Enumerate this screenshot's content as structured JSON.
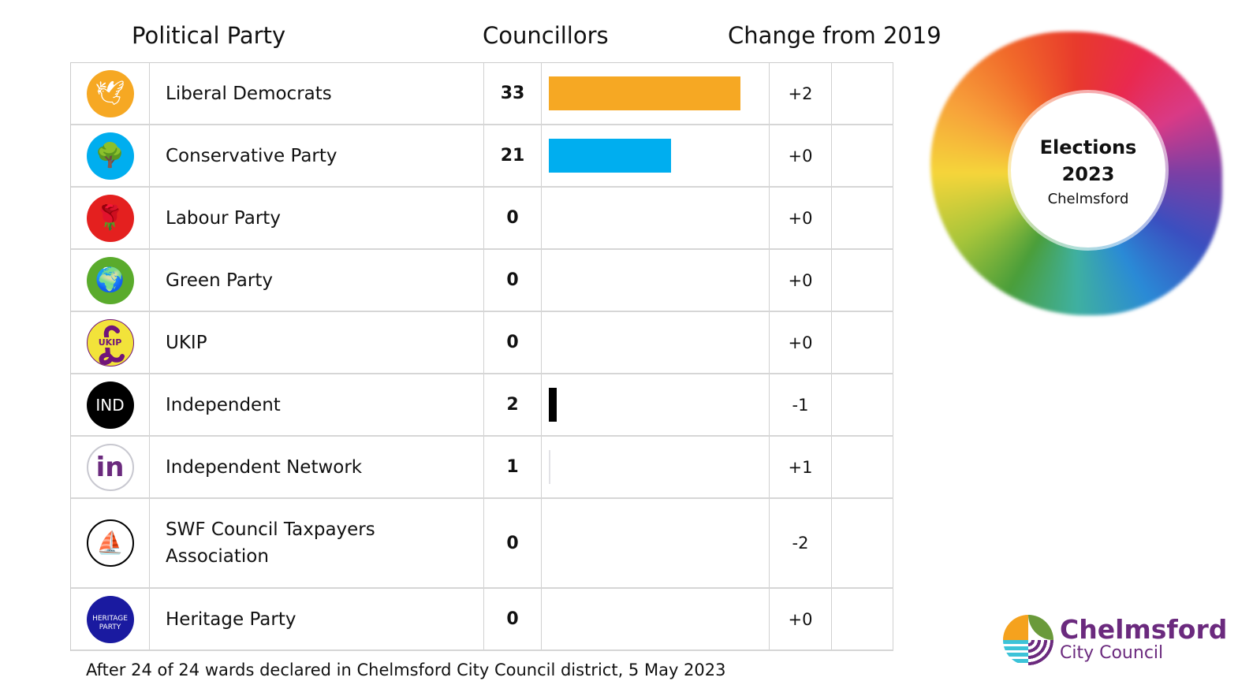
{
  "headers": {
    "party": "Political Party",
    "councillors": "Councillors",
    "change": "Change from 2019"
  },
  "chart_data": {
    "type": "table",
    "columns": [
      "Political Party",
      "Councillors",
      "Change from 2019"
    ],
    "rows": [
      {
        "party": "Liberal Democrats",
        "logo": "bird-of-liberty-icon",
        "logo_color": "#F6A823",
        "councillors": 33,
        "change": "+2",
        "bar_color": "#F6A823"
      },
      {
        "party": "Conservative Party",
        "logo": "tree-icon",
        "logo_color": "#00AEEF",
        "councillors": 21,
        "change": "+0",
        "bar_color": "#00AEEF"
      },
      {
        "party": "Labour Party",
        "logo": "rose-icon",
        "logo_color": "#E4201F",
        "councillors": 0,
        "change": "+0",
        "bar_color": "#E4201F"
      },
      {
        "party": "Green Party",
        "logo": "globe-icon",
        "logo_color": "#5AAB2C",
        "councillors": 0,
        "change": "+0",
        "bar_color": "#5AAB2C"
      },
      {
        "party": "UKIP",
        "logo": "pound-sign-icon",
        "logo_color": "#F2E33A",
        "logo_text": "UKIP",
        "councillors": 0,
        "change": "+0",
        "bar_color": "#70147A"
      },
      {
        "party": "Independent",
        "logo": "ind-icon",
        "logo_color": "#000000",
        "logo_text": "IND",
        "councillors": 2,
        "change": "-1",
        "bar_color": "#000000"
      },
      {
        "party": "Independent Network",
        "logo": "in-icon",
        "logo_color": "#FFFFFF",
        "councillors": 1,
        "change": "+1",
        "bar_color": "#E2E2E6"
      },
      {
        "party": "SWF Council Taxpayers Association",
        "logo": "sailboat-icon",
        "logo_color": "#FFFFFF",
        "councillors": 0,
        "change": "-2",
        "bar_color": "#000000"
      },
      {
        "party": "Heritage Party",
        "logo": "heritage-icon",
        "logo_color": "#1A1AA0",
        "logo_text": "HERITAGE PARTY",
        "councillors": 0,
        "change": "+0",
        "bar_color": "#1A1AA0"
      }
    ],
    "xlim": [
      0,
      33
    ]
  },
  "footer": "After 24 of 24 wards declared in Chelmsford City Council district, 5 May 2023",
  "badge": {
    "line1": "Elections",
    "line2": "2023",
    "line3": "Chelmsford"
  },
  "council_logo": {
    "name": "Chelmsford",
    "sub": "City Council"
  }
}
